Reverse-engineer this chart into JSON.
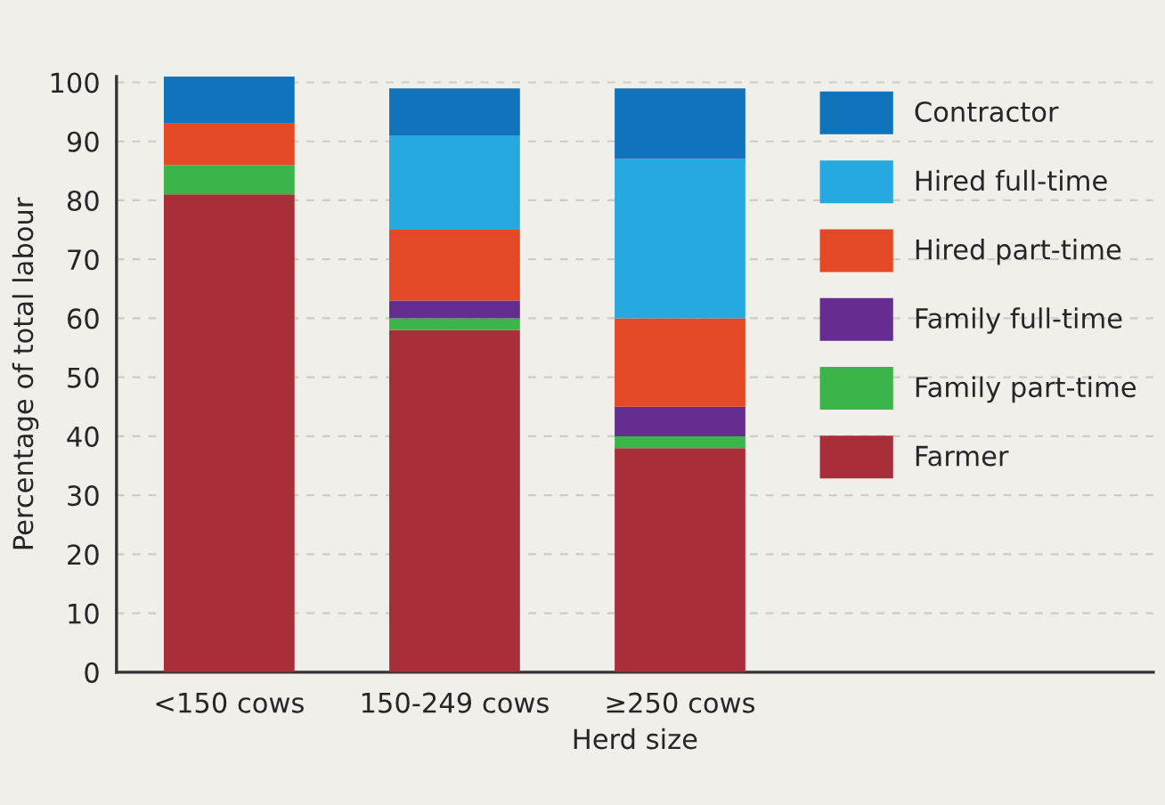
{
  "chart_data": {
    "type": "bar",
    "stacked": true,
    "xlabel": "Herd size",
    "ylabel": "Percentage of total labour",
    "categories": [
      "<150 cows",
      "150-249 cows",
      "≥250 cows"
    ],
    "series": [
      {
        "name": "Farmer",
        "color": "#a82f3a",
        "values": [
          81,
          58,
          38
        ]
      },
      {
        "name": "Family part-time",
        "color": "#3bb44a",
        "values": [
          5,
          2,
          2
        ]
      },
      {
        "name": "Family full-time",
        "color": "#662d91",
        "values": [
          0,
          3,
          5
        ]
      },
      {
        "name": "Hired part-time",
        "color": "#e34827",
        "values": [
          7,
          12,
          15
        ]
      },
      {
        "name": "Hired full-time",
        "color": "#26a9e0",
        "values": [
          0,
          16,
          27
        ]
      },
      {
        "name": "Contractor",
        "color": "#1173bb",
        "values": [
          8,
          8,
          12
        ]
      }
    ],
    "ylim": [
      0,
      101
    ],
    "yticks": [
      0,
      10,
      20,
      30,
      40,
      50,
      60,
      70,
      80,
      90,
      100
    ],
    "grid": "y",
    "legend": "top right"
  }
}
